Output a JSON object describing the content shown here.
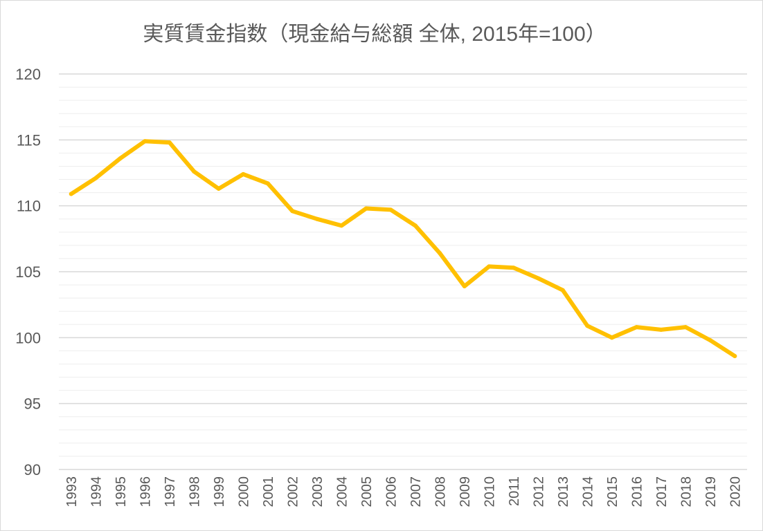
{
  "chart_data": {
    "type": "line",
    "title": "実質賃金指数（現金給与総額 全体, 2015年=100）",
    "xlabel": "",
    "ylabel": "",
    "ylim": [
      90,
      120
    ],
    "ytick_step": 5,
    "minor_grid_step": 1,
    "grid": true,
    "legend": "none",
    "line_color": "#FFC000",
    "grid_major_color": "#d9d9d9",
    "grid_minor_color": "#eeeeee",
    "x": [
      "1993",
      "1994",
      "1995",
      "1996",
      "1997",
      "1998",
      "1999",
      "2000",
      "2001",
      "2002",
      "2003",
      "2004",
      "2005",
      "2006",
      "2007",
      "2008",
      "2009",
      "2010",
      "2011",
      "2012",
      "2013",
      "2014",
      "2015",
      "2016",
      "2017",
      "2018",
      "2019",
      "2020"
    ],
    "series": [
      {
        "values": [
          110.9,
          112.1,
          113.6,
          114.9,
          114.8,
          112.6,
          111.3,
          112.4,
          111.7,
          109.6,
          109.0,
          108.5,
          109.8,
          109.7,
          108.5,
          106.4,
          103.9,
          105.4,
          105.3,
          104.5,
          103.6,
          100.9,
          100.0,
          100.8,
          100.6,
          100.8,
          99.8,
          98.6
        ]
      }
    ]
  }
}
